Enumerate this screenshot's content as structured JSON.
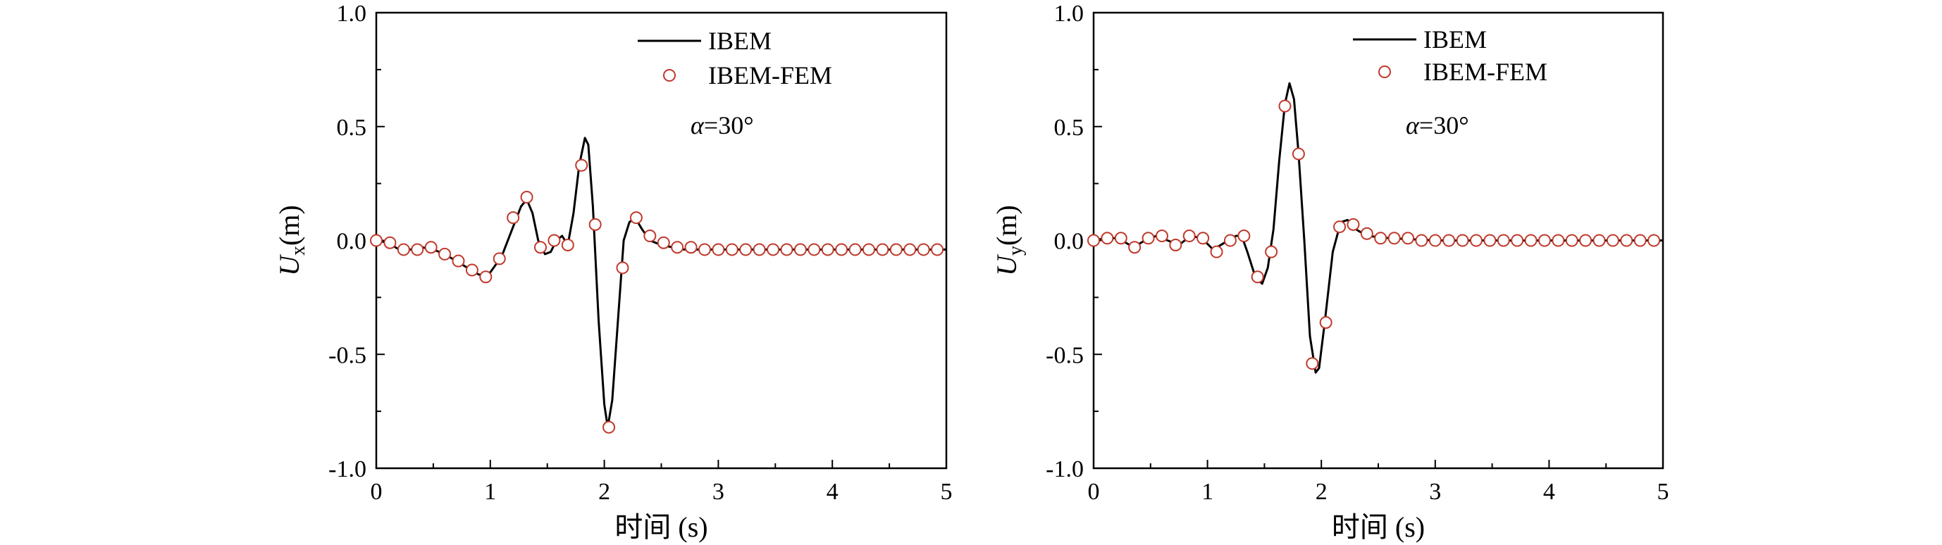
{
  "chart_data": [
    {
      "type": "line",
      "ylabel_main": "U",
      "ylabel_sub": "x",
      "ylabel_unit": "(m)",
      "xlabel": "时间 (s)",
      "annotation_symbol": "α",
      "annotation_value": "=30°",
      "xlim": [
        0,
        5
      ],
      "ylim": [
        -1.0,
        1.0
      ],
      "xticks": [
        "0",
        "1",
        "2",
        "3",
        "4",
        "5"
      ],
      "yticks": [
        "1.0",
        "0.5",
        "0.0",
        "-0.5",
        "-1.0"
      ],
      "legend": "top-center",
      "series": [
        {
          "name": "IBEM",
          "style": "line",
          "color": "#000000",
          "points": [
            [
              0,
              0.0
            ],
            [
              0.1,
              -0.01
            ],
            [
              0.2,
              -0.04
            ],
            [
              0.3,
              -0.04
            ],
            [
              0.4,
              -0.03
            ],
            [
              0.5,
              -0.04
            ],
            [
              0.6,
              -0.06
            ],
            [
              0.7,
              -0.09
            ],
            [
              0.8,
              -0.12
            ],
            [
              0.9,
              -0.15
            ],
            [
              0.95,
              -0.15
            ],
            [
              1.0,
              -0.14
            ],
            [
              1.1,
              -0.07
            ],
            [
              1.2,
              0.06
            ],
            [
              1.27,
              0.15
            ],
            [
              1.32,
              0.18
            ],
            [
              1.37,
              0.12
            ],
            [
              1.42,
              0.0
            ],
            [
              1.48,
              -0.06
            ],
            [
              1.53,
              -0.05
            ],
            [
              1.58,
              0.0
            ],
            [
              1.63,
              0.02
            ],
            [
              1.68,
              -0.02
            ],
            [
              1.73,
              0.12
            ],
            [
              1.78,
              0.33
            ],
            [
              1.83,
              0.45
            ],
            [
              1.86,
              0.42
            ],
            [
              1.9,
              0.15
            ],
            [
              1.95,
              -0.35
            ],
            [
              2.0,
              -0.72
            ],
            [
              2.03,
              -0.82
            ],
            [
              2.07,
              -0.7
            ],
            [
              2.12,
              -0.35
            ],
            [
              2.17,
              0.0
            ],
            [
              2.22,
              0.08
            ],
            [
              2.27,
              0.1
            ],
            [
              2.33,
              0.05
            ],
            [
              2.4,
              0.0
            ],
            [
              2.5,
              -0.02
            ],
            [
              2.7,
              -0.04
            ],
            [
              3.0,
              -0.04
            ],
            [
              4.0,
              -0.04
            ],
            [
              5.0,
              -0.04
            ]
          ]
        },
        {
          "name": "IBEM-FEM",
          "style": "marker",
          "color": "#c0392b",
          "points": [
            [
              0,
              0.0
            ],
            [
              0.12,
              -0.01
            ],
            [
              0.24,
              -0.04
            ],
            [
              0.36,
              -0.04
            ],
            [
              0.48,
              -0.03
            ],
            [
              0.6,
              -0.06
            ],
            [
              0.72,
              -0.09
            ],
            [
              0.84,
              -0.13
            ],
            [
              0.96,
              -0.16
            ],
            [
              1.08,
              -0.08
            ],
            [
              1.2,
              0.1
            ],
            [
              1.32,
              0.19
            ],
            [
              1.44,
              -0.03
            ],
            [
              1.56,
              0.0
            ],
            [
              1.68,
              -0.02
            ],
            [
              1.8,
              0.33
            ],
            [
              1.92,
              0.07
            ],
            [
              2.04,
              -0.82
            ],
            [
              2.16,
              -0.12
            ],
            [
              2.28,
              0.1
            ],
            [
              2.4,
              0.02
            ],
            [
              2.52,
              -0.01
            ],
            [
              2.64,
              -0.03
            ],
            [
              2.76,
              -0.03
            ],
            [
              2.88,
              -0.04
            ],
            [
              3.0,
              -0.04
            ],
            [
              3.12,
              -0.04
            ],
            [
              3.24,
              -0.04
            ],
            [
              3.36,
              -0.04
            ],
            [
              3.48,
              -0.04
            ],
            [
              3.6,
              -0.04
            ],
            [
              3.72,
              -0.04
            ],
            [
              3.84,
              -0.04
            ],
            [
              3.96,
              -0.04
            ],
            [
              4.08,
              -0.04
            ],
            [
              4.2,
              -0.04
            ],
            [
              4.32,
              -0.04
            ],
            [
              4.44,
              -0.04
            ],
            [
              4.56,
              -0.04
            ],
            [
              4.68,
              -0.04
            ],
            [
              4.8,
              -0.04
            ],
            [
              4.92,
              -0.04
            ]
          ]
        }
      ]
    },
    {
      "type": "line",
      "ylabel_main": "U",
      "ylabel_sub": "y",
      "ylabel_unit": "(m)",
      "xlabel": "时间 (s)",
      "annotation_symbol": "α",
      "annotation_value": "=30°",
      "xlim": [
        0,
        5
      ],
      "ylim": [
        -1.0,
        1.0
      ],
      "xticks": [
        "0",
        "1",
        "2",
        "3",
        "4",
        "5"
      ],
      "yticks": [
        "1.0",
        "0.5",
        "0.0",
        "-0.5",
        "-1.0"
      ],
      "legend": "top-center",
      "series": [
        {
          "name": "IBEM",
          "style": "line",
          "color": "#000000",
          "points": [
            [
              0,
              0.0
            ],
            [
              0.1,
              0.01
            ],
            [
              0.2,
              0.01
            ],
            [
              0.25,
              0.0
            ],
            [
              0.35,
              -0.03
            ],
            [
              0.45,
              0.0
            ],
            [
              0.55,
              0.02
            ],
            [
              0.65,
              0.0
            ],
            [
              0.75,
              -0.02
            ],
            [
              0.85,
              0.02
            ],
            [
              0.95,
              0.01
            ],
            [
              1.05,
              -0.04
            ],
            [
              1.15,
              -0.01
            ],
            [
              1.25,
              0.02
            ],
            [
              1.3,
              0.02
            ],
            [
              1.35,
              -0.05
            ],
            [
              1.42,
              -0.16
            ],
            [
              1.48,
              -0.19
            ],
            [
              1.53,
              -0.12
            ],
            [
              1.58,
              0.05
            ],
            [
              1.63,
              0.35
            ],
            [
              1.68,
              0.6
            ],
            [
              1.72,
              0.69
            ],
            [
              1.76,
              0.62
            ],
            [
              1.8,
              0.38
            ],
            [
              1.85,
              0.0
            ],
            [
              1.9,
              -0.42
            ],
            [
              1.95,
              -0.58
            ],
            [
              1.98,
              -0.56
            ],
            [
              2.03,
              -0.36
            ],
            [
              2.1,
              -0.05
            ],
            [
              2.17,
              0.08
            ],
            [
              2.23,
              0.09
            ],
            [
              2.3,
              0.05
            ],
            [
              2.4,
              0.02
            ],
            [
              2.6,
              0.01
            ],
            [
              3.0,
              0.0
            ],
            [
              4.0,
              0.0
            ],
            [
              5.0,
              0.0
            ]
          ]
        },
        {
          "name": "IBEM-FEM",
          "style": "marker",
          "color": "#c0392b",
          "points": [
            [
              0,
              0.0
            ],
            [
              0.12,
              0.01
            ],
            [
              0.24,
              0.01
            ],
            [
              0.36,
              -0.03
            ],
            [
              0.48,
              0.01
            ],
            [
              0.6,
              0.02
            ],
            [
              0.72,
              -0.02
            ],
            [
              0.84,
              0.02
            ],
            [
              0.96,
              0.01
            ],
            [
              1.08,
              -0.05
            ],
            [
              1.2,
              0.0
            ],
            [
              1.32,
              0.02
            ],
            [
              1.44,
              -0.16
            ],
            [
              1.56,
              -0.05
            ],
            [
              1.68,
              0.59
            ],
            [
              1.8,
              0.38
            ],
            [
              1.92,
              -0.54
            ],
            [
              2.04,
              -0.36
            ],
            [
              2.16,
              0.06
            ],
            [
              2.28,
              0.07
            ],
            [
              2.4,
              0.03
            ],
            [
              2.52,
              0.01
            ],
            [
              2.64,
              0.01
            ],
            [
              2.76,
              0.01
            ],
            [
              2.88,
              0.0
            ],
            [
              3.0,
              0.0
            ],
            [
              3.12,
              0.0
            ],
            [
              3.24,
              0.0
            ],
            [
              3.36,
              0.0
            ],
            [
              3.48,
              0.0
            ],
            [
              3.6,
              0.0
            ],
            [
              3.72,
              0.0
            ],
            [
              3.84,
              0.0
            ],
            [
              3.96,
              0.0
            ],
            [
              4.08,
              0.0
            ],
            [
              4.2,
              0.0
            ],
            [
              4.32,
              0.0
            ],
            [
              4.44,
              0.0
            ],
            [
              4.56,
              0.0
            ],
            [
              4.68,
              0.0
            ],
            [
              4.8,
              0.0
            ],
            [
              4.92,
              0.0
            ]
          ]
        }
      ]
    }
  ]
}
